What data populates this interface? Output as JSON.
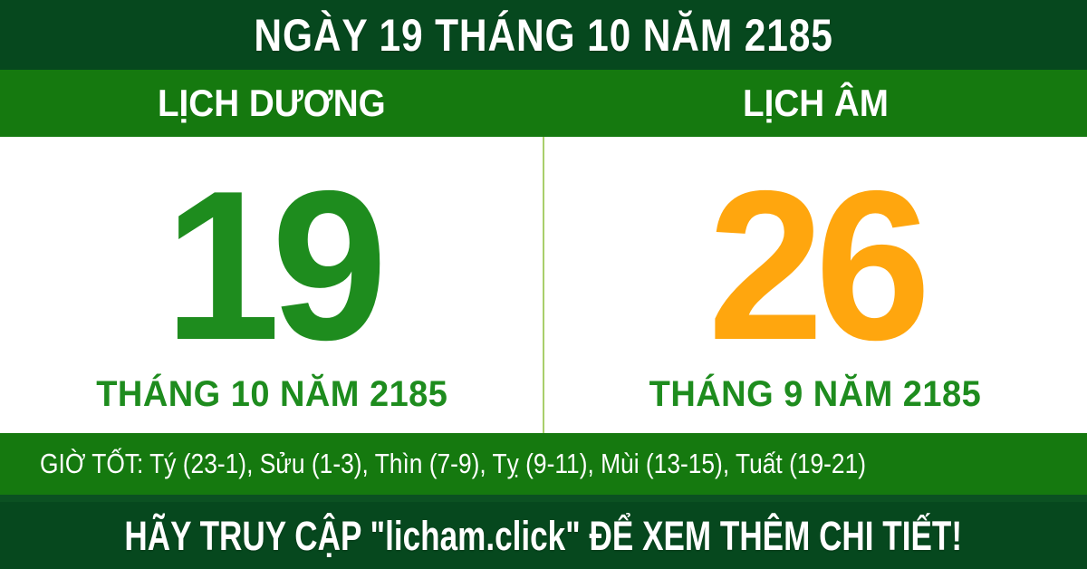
{
  "header": {
    "title": "NGÀY 19 THÁNG 10 NĂM 2185"
  },
  "calendar_labels": {
    "solar": "LỊCH DƯƠNG",
    "lunar": "LỊCH ÂM"
  },
  "solar": {
    "day": "19",
    "month_year": "THÁNG 10 NĂM 2185"
  },
  "lunar": {
    "day": "26",
    "month_year": "THÁNG 9 NĂM 2185"
  },
  "good_hours": {
    "text": "GIỜ TỐT: Tý (23-1), Sửu (1-3), Thìn (7-9), Tỵ (9-11), Mùi (13-15), Tuất (19-21)"
  },
  "footer": {
    "text": "HÃY TRUY CẬP \"licham.click\" ĐỂ XEM THÊM CHI TIẾT!",
    "site_name": "licham.click"
  },
  "colors": {
    "header_bg": "#06481E",
    "band_bg": "#15790F",
    "hours_bg": "#15790F",
    "footer_bg": "#06481E",
    "solar_day": "#1E8C1E",
    "lunar_day": "#FFA60E",
    "month_text": "#1E8C1E",
    "divider": "#A9CF6B",
    "panel_bg": "#FFFFFF",
    "strip": "#0B5122",
    "bottom_edge": "#053B19",
    "text_light": "#FFFFFF"
  }
}
